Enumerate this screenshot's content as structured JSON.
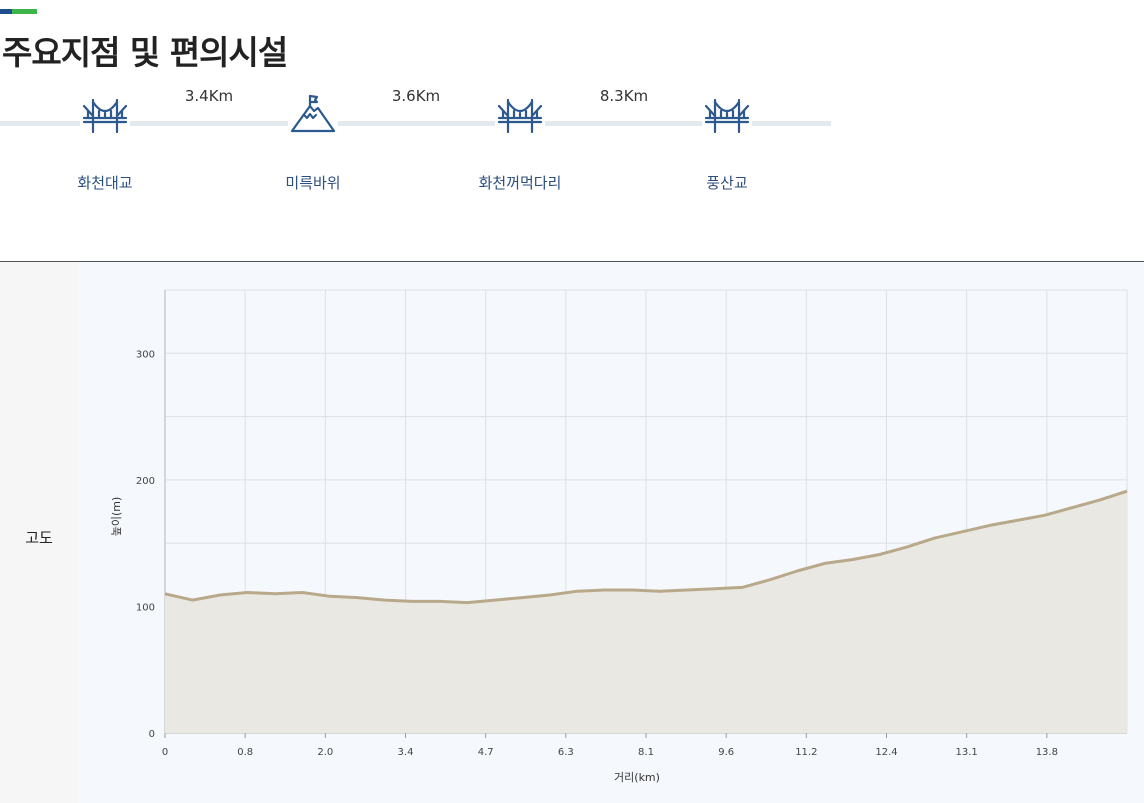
{
  "header": {
    "title": "주요지점 및 편의시설"
  },
  "colors": {
    "accent_blue": "#1f4e8c",
    "accent_green": "#3db54a",
    "icon": "#2d5a8e",
    "stop_text": "#2d4f80",
    "elevation_line": "#b9a98b",
    "elevation_fill": "#eae8e3"
  },
  "route": {
    "stops": [
      {
        "name": "화천대교",
        "icon": "bridge-icon"
      },
      {
        "name": "미륵바위",
        "icon": "mountain-flag-icon"
      },
      {
        "name": "화천꺼먹다리",
        "icon": "bridge-icon"
      },
      {
        "name": "풍산교",
        "icon": "bridge-icon"
      }
    ],
    "distances": [
      "3.4Km",
      "3.6Km",
      "8.3Km"
    ]
  },
  "side": {
    "label": "고도"
  },
  "chart_data": {
    "type": "area",
    "xlabel": "거리(km)",
    "ylabel": "높이(m)",
    "ylim": [
      0,
      350
    ],
    "y_ticks": [
      0,
      100,
      200,
      300
    ],
    "x_tick_labels": [
      "0",
      "0.8",
      "2.0",
      "3.4",
      "4.7",
      "6.3",
      "8.1",
      "9.6",
      "11.2",
      "12.4",
      "13.1",
      "13.8"
    ],
    "grid": true,
    "series": [
      {
        "values": [
          110,
          105,
          109,
          111,
          110,
          111,
          108,
          107,
          105,
          104,
          104,
          103,
          105,
          107,
          109,
          112,
          113,
          113,
          112,
          113,
          114,
          115,
          121,
          128,
          134,
          137,
          141,
          147,
          154,
          159,
          164,
          168,
          172,
          178,
          184,
          191
        ]
      }
    ]
  }
}
